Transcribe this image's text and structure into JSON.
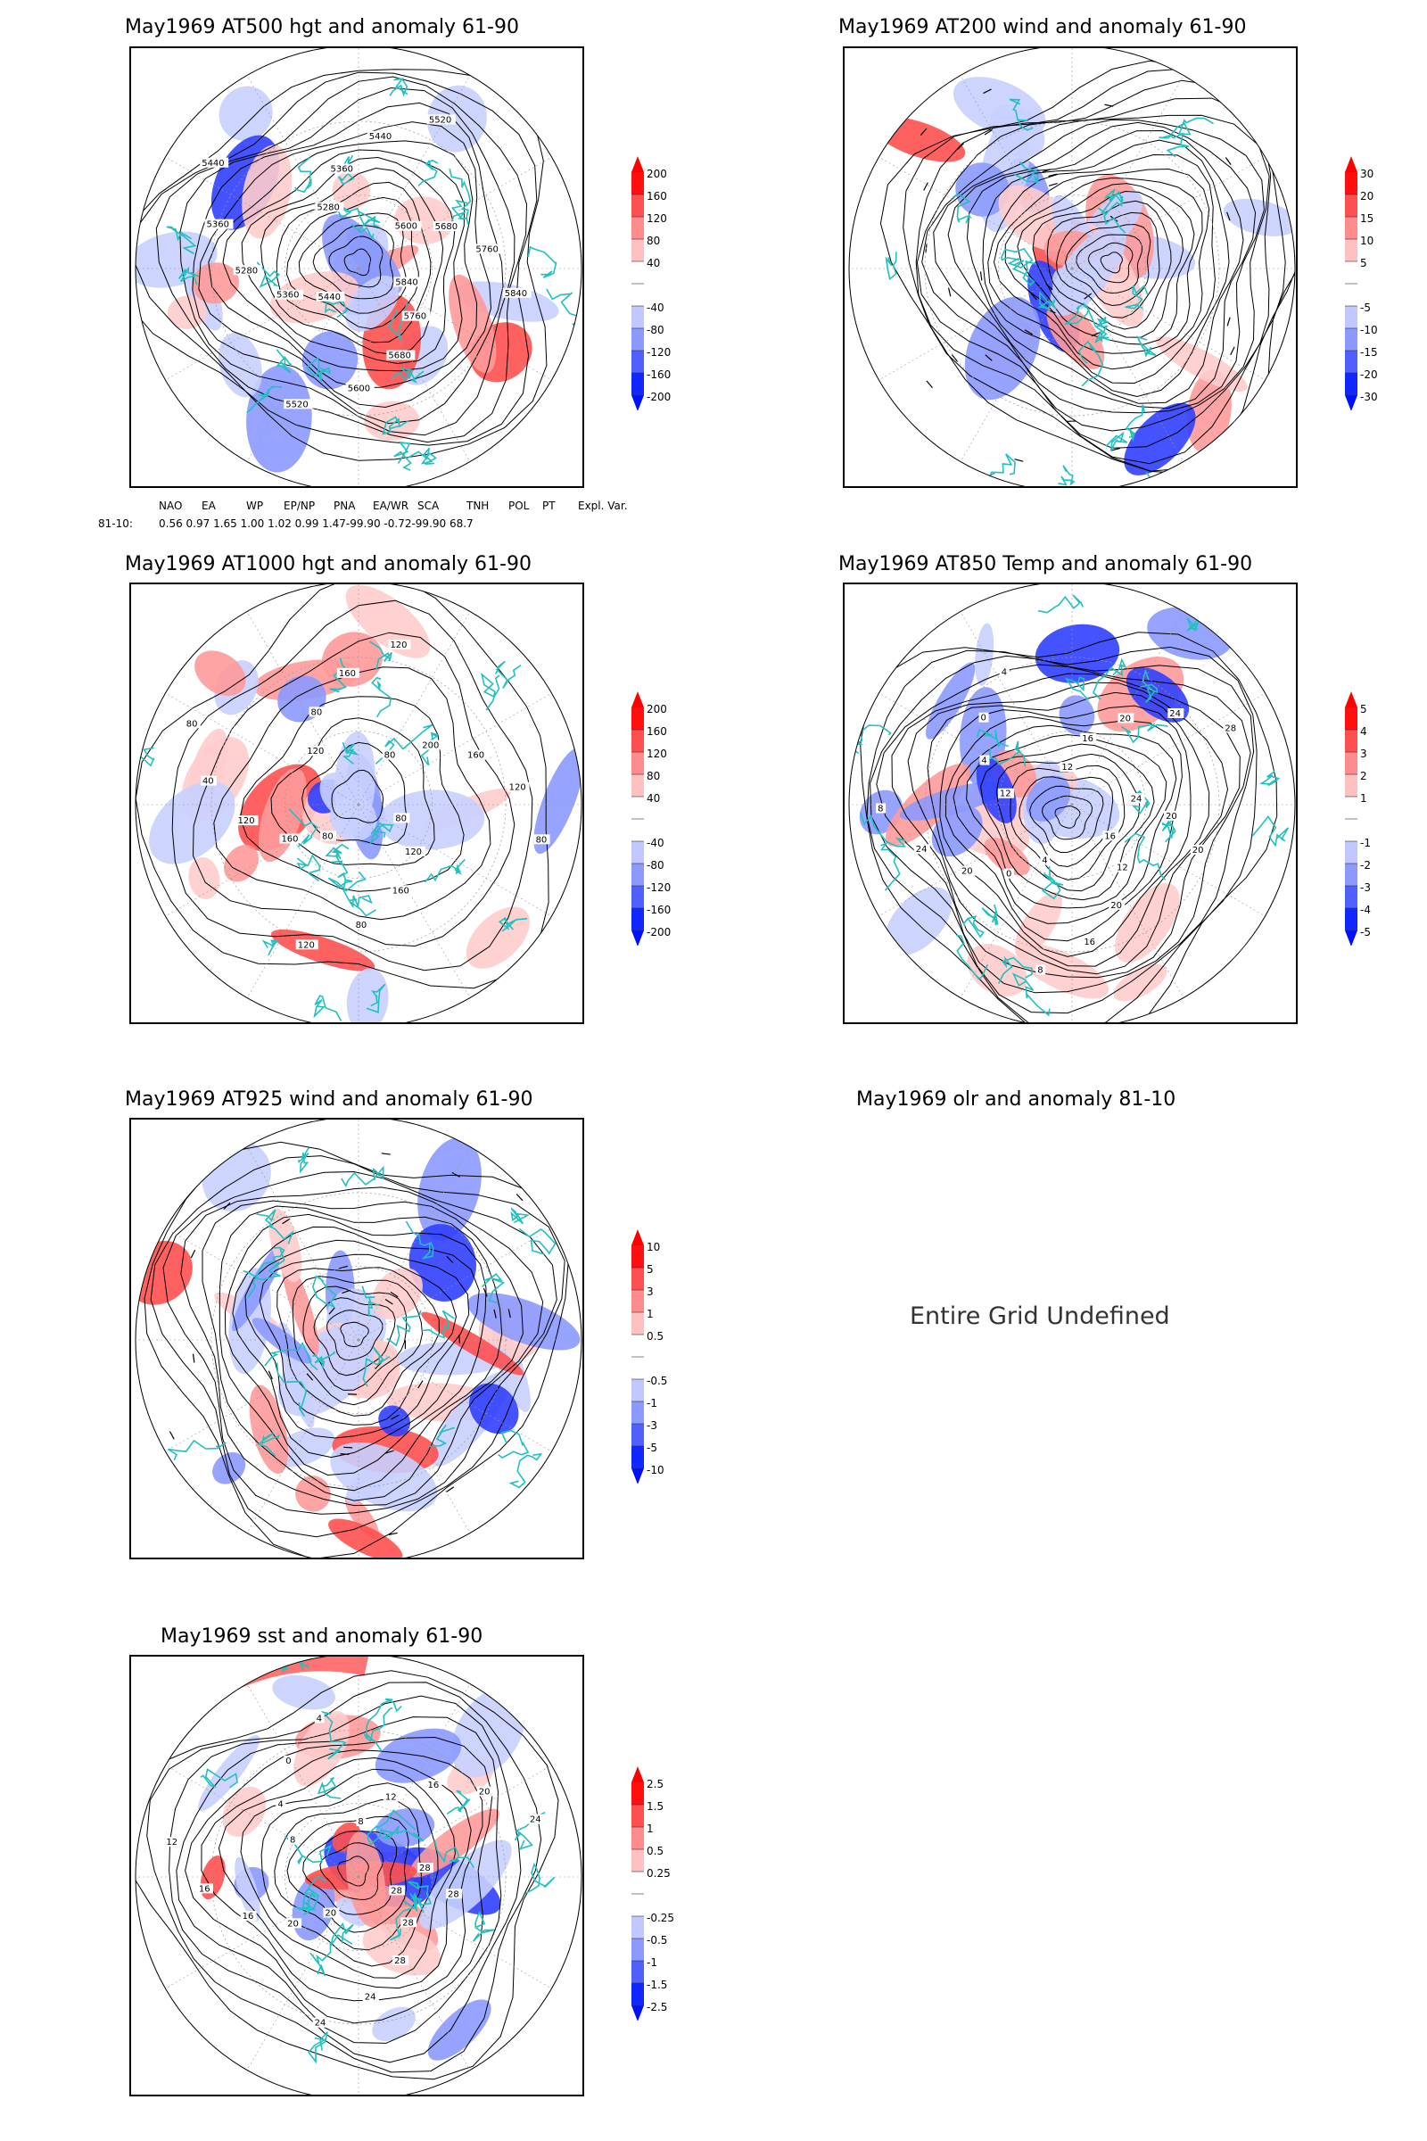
{
  "panels": [
    {
      "id": "p500",
      "title": "May1969 AT500 hgt and anomaly 61-90",
      "colorbar": [
        "200",
        "160",
        "120",
        "80",
        "40",
        "-40",
        "-80",
        "-120",
        "-160",
        "-200"
      ],
      "contour_labels": [
        "5840",
        "5760",
        "5680",
        "5600",
        "5520",
        "5440",
        "5360",
        "5280",
        "5360",
        "5440",
        "5280",
        "5360",
        "5440",
        "5520",
        "5600",
        "5680",
        "5760",
        "5840"
      ]
    },
    {
      "id": "p200",
      "title": "May1969 AT200 wind and anomaly 61-90",
      "colorbar": [
        "30",
        "20",
        "15",
        "10",
        "5",
        "-5",
        "-10",
        "-15",
        "-20",
        "-30"
      ]
    },
    {
      "id": "p1000",
      "title": "May1969 AT1000 hgt and anomaly 61-90",
      "colorbar": [
        "200",
        "160",
        "120",
        "80",
        "40",
        "-40",
        "-80",
        "-120",
        "-160",
        "-200"
      ],
      "contour_labels": [
        "80",
        "120",
        "160",
        "80",
        "120",
        "80",
        "160",
        "120",
        "40",
        "80",
        "120",
        "80",
        "160",
        "120",
        "80",
        "200",
        "160",
        "120",
        "80"
      ]
    },
    {
      "id": "p850",
      "title": "May1969 AT850 Temp and anomaly 61-90",
      "colorbar": [
        "5",
        "4",
        "3",
        "2",
        "1",
        "-1",
        "-2",
        "-3",
        "-4",
        "-5"
      ],
      "contour_labels": [
        "16",
        "12",
        "20",
        "16",
        "8",
        "4",
        "0",
        "20",
        "24",
        "8",
        "12",
        "4",
        "0",
        "4",
        "12",
        "16",
        "20",
        "24",
        "28",
        "24",
        "20",
        "20"
      ]
    },
    {
      "id": "p925",
      "title": "May1969 AT925 wind and anomaly 61-90",
      "colorbar": [
        "10",
        "5",
        "3",
        "1",
        "0.5",
        "-0.5",
        "-1",
        "-3",
        "-5",
        "-10"
      ]
    },
    {
      "id": "polr",
      "title": "May1969 olr and anomaly 81-10",
      "undefined_text": "Entire Grid Undefined"
    },
    {
      "id": "psst",
      "title": "May1969 sst and anomaly 61-90",
      "colorbar": [
        "2.5",
        "1.5",
        "1",
        "0.5",
        "0.25",
        "-0.25",
        "-0.5",
        "-1",
        "-1.5",
        "-2.5"
      ],
      "contour_labels": [
        "28",
        "28",
        "28",
        "24",
        "24",
        "20",
        "20",
        "16",
        "16",
        "12",
        "8",
        "4",
        "0",
        "4",
        "8",
        "12",
        "16",
        "20",
        "24",
        "28",
        "28"
      ]
    }
  ],
  "teleconnection": {
    "headers": [
      "NAO",
      "EA",
      "WP",
      "EP/NP",
      "PNA",
      "EA/WR",
      "SCA",
      "TNH",
      "POL",
      "PT",
      "Expl. Var."
    ],
    "row_label": "81-10:",
    "values": "0.56  0.97  1.65  1.00  1.02  0.99  1.47-99.90  -0.72-99.90   68.7"
  },
  "colors": {
    "coast": "#20c0c0",
    "pos": "#e02020",
    "neg": "#2020e0",
    "contour": "#000000"
  }
}
